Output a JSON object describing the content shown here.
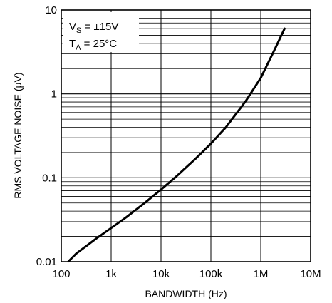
{
  "chart_data": {
    "type": "line",
    "title": "",
    "xlabel": "BANDWIDTH (Hz)",
    "ylabel": "RMS VOLTAGE NOISE (μV)",
    "xscale": "log",
    "yscale": "log",
    "xlim": [
      100,
      10000000
    ],
    "ylim": [
      0.01,
      10
    ],
    "grid": true,
    "x_tick_labels": [
      "100",
      "1k",
      "10k",
      "100k",
      "1M",
      "10M"
    ],
    "y_tick_labels": [
      "0.01",
      "0.1",
      "1",
      "10"
    ],
    "annotation": {
      "line1_main": "V",
      "line1_sub": "S",
      "line1_rest": " = ±15V",
      "line2_main": "T",
      "line2_sub": "A",
      "line2_rest": " = 25°C",
      "placement": "top-left"
    },
    "series": [
      {
        "x": [
          140,
          200,
          500,
          1000,
          2000,
          5000,
          10000,
          20000,
          50000,
          100000,
          200000,
          500000,
          1000000,
          2000000,
          3000000
        ],
        "y": [
          0.0101,
          0.0125,
          0.0188,
          0.0252,
          0.0338,
          0.0515,
          0.0725,
          0.103,
          0.17,
          0.255,
          0.4,
          0.82,
          1.55,
          3.6,
          6.0
        ]
      }
    ]
  }
}
